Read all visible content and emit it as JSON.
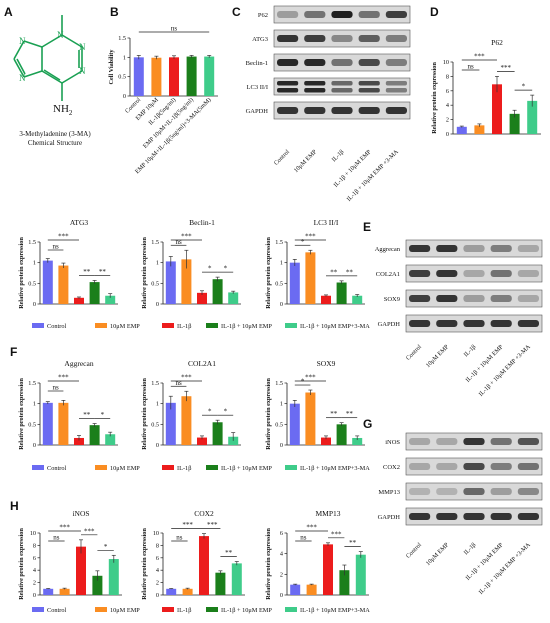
{
  "colors": {
    "Control": "#6b6bf2",
    "EMP": "#fa8d22",
    "IL1b": "#ec1c1c",
    "IL1b_EMP": "#1b7f1b",
    "IL1b_EMP_3MA": "#3fcc8a",
    "bar_B": [
      "#6b6bf2",
      "#fa8d22",
      "#ec1c1c",
      "#1b7f1b",
      "#3fcc8a"
    ]
  },
  "panels": {
    "A": "A",
    "B": "B",
    "C": "C",
    "D": "D",
    "E": "E",
    "F": "F",
    "G": "G",
    "H": "H"
  },
  "structure": {
    "atom_N_top": "N",
    "atom_N_left_top": "N",
    "atom_N_left_bottom": "N",
    "atom_N_right_top": "N",
    "atom_N_right_bottom": "N",
    "atom_NH2": "NH",
    "atom_NH2_sub": "2",
    "caption_line1": "3-Methyladenine (3-MA)",
    "caption_line2": "Chemical Structure"
  },
  "legend": {
    "control": "Control",
    "emp": "10μM EMP",
    "il1b": "IL-1β",
    "il1b_emp": "IL-1β + 10μM EMP",
    "il1b_emp_3ma": "IL-1β + 10μM EMP+3-MA",
    "il1b_emp_3ma_H": "IL-1β + 10μM EMP+3-MA"
  },
  "blots": {
    "C": {
      "bands": [
        "P62",
        "ATG3",
        "Beclin-1",
        "LC3 II/I",
        "GAPDH"
      ],
      "lanes": [
        "Control",
        "10μM EMP",
        "IL-1β",
        "IL-1β + 10μM EMP",
        "IL-1β + 10μM EMP +3-MA"
      ]
    },
    "E": {
      "bands": [
        "Aggrecan",
        "COL2A1",
        "SOX9",
        "GAPDH"
      ],
      "lanes": [
        "Control",
        "10μM EMP",
        "IL-1β",
        "IL-1β + 10μM EMP",
        "IL-1β + 10μM EMP +3-MA"
      ]
    },
    "G": {
      "bands": [
        "iNOS",
        "COX2",
        "MMP13",
        "GAPDH"
      ],
      "lanes": [
        "Control",
        "10μM EMP",
        "IL-1β",
        "IL-1β + 10μM EMP",
        "IL-1β + 10μM EMP +3-MA"
      ]
    }
  },
  "chart_data": [
    {
      "id": "B",
      "type": "bar",
      "title": "",
      "ylabel": "Cell Viability",
      "ylim": [
        0,
        1.5
      ],
      "yticks": [
        0,
        0.5,
        1,
        1.5
      ],
      "categories": [
        "Control",
        "EMP 10μM",
        "IL-1β(5ng/ml)",
        "EMP 10μM+IL-1β(5ng/ml)",
        "EMP 10μM+IL-1β(5ng/ml)+3-MA(5mM)"
      ],
      "values": [
        1.0,
        0.99,
        1.0,
        1.02,
        1.02
      ],
      "errors": [
        0.05,
        0.04,
        0.04,
        0.03,
        0.03
      ],
      "sig": [
        {
          "a": 0,
          "b": 4,
          "text": "ns"
        }
      ]
    },
    {
      "id": "D",
      "type": "bar",
      "title": "P62",
      "ylabel": "Relative protein expression",
      "ylim": [
        0,
        10
      ],
      "yticks": [
        0,
        2,
        4,
        6,
        8,
        10
      ],
      "values": [
        1.0,
        1.2,
        6.9,
        2.8,
        4.6
      ],
      "errors": [
        0.1,
        0.2,
        1.1,
        0.5,
        0.8
      ],
      "sig": [
        {
          "a": 0,
          "b": 1,
          "text": "ns"
        },
        {
          "a": 0,
          "b": 2,
          "text": "***"
        },
        {
          "a": 2,
          "b": 3,
          "text": "***"
        },
        {
          "a": 3,
          "b": 4,
          "text": "*"
        }
      ]
    },
    {
      "id": "ATG3",
      "type": "bar",
      "title": "ATG3",
      "ylabel": "Relative protein expression",
      "ylim": [
        0,
        1.5
      ],
      "yticks": [
        0,
        0.5,
        1,
        1.5
      ],
      "values": [
        1.05,
        0.93,
        0.15,
        0.53,
        0.2
      ],
      "errors": [
        0.05,
        0.06,
        0.02,
        0.04,
        0.05
      ],
      "sig": [
        {
          "a": 0,
          "b": 1,
          "text": "ns"
        },
        {
          "a": 0,
          "b": 2,
          "text": "***"
        },
        {
          "a": 2,
          "b": 3,
          "text": "**"
        },
        {
          "a": 3,
          "b": 4,
          "text": "**"
        }
      ]
    },
    {
      "id": "Beclin",
      "type": "bar",
      "title": "Beclin-1",
      "ylabel": "Relative protein expression",
      "ylim": [
        0,
        1.5
      ],
      "yticks": [
        0,
        0.5,
        1,
        1.5
      ],
      "values": [
        1.03,
        1.08,
        0.27,
        0.6,
        0.28
      ],
      "errors": [
        0.12,
        0.22,
        0.05,
        0.05,
        0.03
      ],
      "sig": [
        {
          "a": 0,
          "b": 1,
          "text": "ns"
        },
        {
          "a": 0,
          "b": 2,
          "text": "***"
        },
        {
          "a": 2,
          "b": 3,
          "text": "*"
        },
        {
          "a": 3,
          "b": 4,
          "text": "*"
        }
      ]
    },
    {
      "id": "LC3",
      "type": "bar",
      "title": "LC3 II/I",
      "ylabel": "Relative protein expression",
      "ylim": [
        0,
        1.5
      ],
      "yticks": [
        0,
        0.5,
        1,
        1.5
      ],
      "values": [
        1.0,
        1.25,
        0.2,
        0.52,
        0.2
      ],
      "errors": [
        0.08,
        0.05,
        0.02,
        0.04,
        0.03
      ],
      "sig": [
        {
          "a": 0,
          "b": 1,
          "text": "*"
        },
        {
          "a": 0,
          "b": 2,
          "text": "***"
        },
        {
          "a": 2,
          "b": 3,
          "text": "**"
        },
        {
          "a": 3,
          "b": 4,
          "text": "**"
        }
      ]
    },
    {
      "id": "Aggrecan",
      "type": "bar",
      "title": "Aggrecan",
      "ylabel": "Relative protein expression",
      "ylim": [
        0,
        1.5
      ],
      "yticks": [
        0,
        0.5,
        1,
        1.5
      ],
      "values": [
        1.02,
        1.02,
        0.17,
        0.48,
        0.26
      ],
      "errors": [
        0.03,
        0.06,
        0.06,
        0.04,
        0.05
      ],
      "sig": [
        {
          "a": 0,
          "b": 1,
          "text": "ns"
        },
        {
          "a": 0,
          "b": 2,
          "text": "***"
        },
        {
          "a": 2,
          "b": 3,
          "text": "**"
        },
        {
          "a": 3,
          "b": 4,
          "text": "*"
        }
      ]
    },
    {
      "id": "COL2A1",
      "type": "bar",
      "title": "COL2A1",
      "ylabel": "Relative protein expression",
      "ylim": [
        0,
        1.5
      ],
      "yticks": [
        0,
        0.5,
        1,
        1.5
      ],
      "values": [
        1.02,
        1.18,
        0.18,
        0.55,
        0.2
      ],
      "errors": [
        0.16,
        0.12,
        0.04,
        0.05,
        0.1
      ],
      "sig": [
        {
          "a": 0,
          "b": 1,
          "text": "ns"
        },
        {
          "a": 0,
          "b": 2,
          "text": "***"
        },
        {
          "a": 2,
          "b": 3,
          "text": "*"
        },
        {
          "a": 3,
          "b": 4,
          "text": "*"
        }
      ]
    },
    {
      "id": "SOX9",
      "type": "bar",
      "title": "SOX9",
      "ylabel": "Relative protein expression",
      "ylim": [
        0,
        1.5
      ],
      "yticks": [
        0,
        0.5,
        1,
        1.5
      ],
      "values": [
        1.0,
        1.27,
        0.18,
        0.5,
        0.17
      ],
      "errors": [
        0.08,
        0.06,
        0.04,
        0.04,
        0.05
      ],
      "sig": [
        {
          "a": 0,
          "b": 1,
          "text": "*"
        },
        {
          "a": 0,
          "b": 2,
          "text": "***"
        },
        {
          "a": 2,
          "b": 3,
          "text": "**"
        },
        {
          "a": 3,
          "b": 4,
          "text": "**"
        }
      ]
    },
    {
      "id": "iNOS",
      "type": "bar",
      "title": "iNOS",
      "ylabel": "Relative protein expression",
      "ylim": [
        0,
        10
      ],
      "yticks": [
        0,
        2,
        4,
        6,
        8,
        10
      ],
      "values": [
        1.0,
        1.0,
        7.8,
        3.1,
        5.8
      ],
      "errors": [
        0.05,
        0.1,
        1.1,
        0.8,
        0.6
      ],
      "sig": [
        {
          "a": 0,
          "b": 1,
          "text": "ns"
        },
        {
          "a": 0,
          "b": 2,
          "text": "***"
        },
        {
          "a": 2,
          "b": 3,
          "text": "***"
        },
        {
          "a": 3,
          "b": 4,
          "text": "*"
        }
      ]
    },
    {
      "id": "COX2",
      "type": "bar",
      "title": "COX2",
      "ylabel": "Relative protein expression",
      "ylim": [
        0,
        10
      ],
      "yticks": [
        0,
        2,
        4,
        6,
        8,
        10
      ],
      "values": [
        1.0,
        1.0,
        9.5,
        3.6,
        5.1
      ],
      "errors": [
        0.05,
        0.1,
        0.4,
        0.3,
        0.3
      ],
      "sig": [
        {
          "a": 0,
          "b": 1,
          "text": "ns"
        },
        {
          "a": 0,
          "b": 2,
          "text": "***"
        },
        {
          "a": 2,
          "b": 3,
          "text": "***"
        },
        {
          "a": 3,
          "b": 4,
          "text": "**"
        }
      ]
    },
    {
      "id": "MMP13",
      "type": "bar",
      "title": "MMP13",
      "ylabel": "Relative protein expression",
      "ylim": [
        0,
        6
      ],
      "yticks": [
        0,
        2,
        4,
        6
      ],
      "values": [
        1.0,
        1.0,
        4.9,
        2.4,
        3.9
      ],
      "errors": [
        0.05,
        0.05,
        0.15,
        0.5,
        0.3
      ],
      "sig": [
        {
          "a": 0,
          "b": 1,
          "text": "ns"
        },
        {
          "a": 0,
          "b": 2,
          "text": "***"
        },
        {
          "a": 2,
          "b": 3,
          "text": "***"
        },
        {
          "a": 3,
          "b": 4,
          "text": "**"
        }
      ]
    }
  ]
}
